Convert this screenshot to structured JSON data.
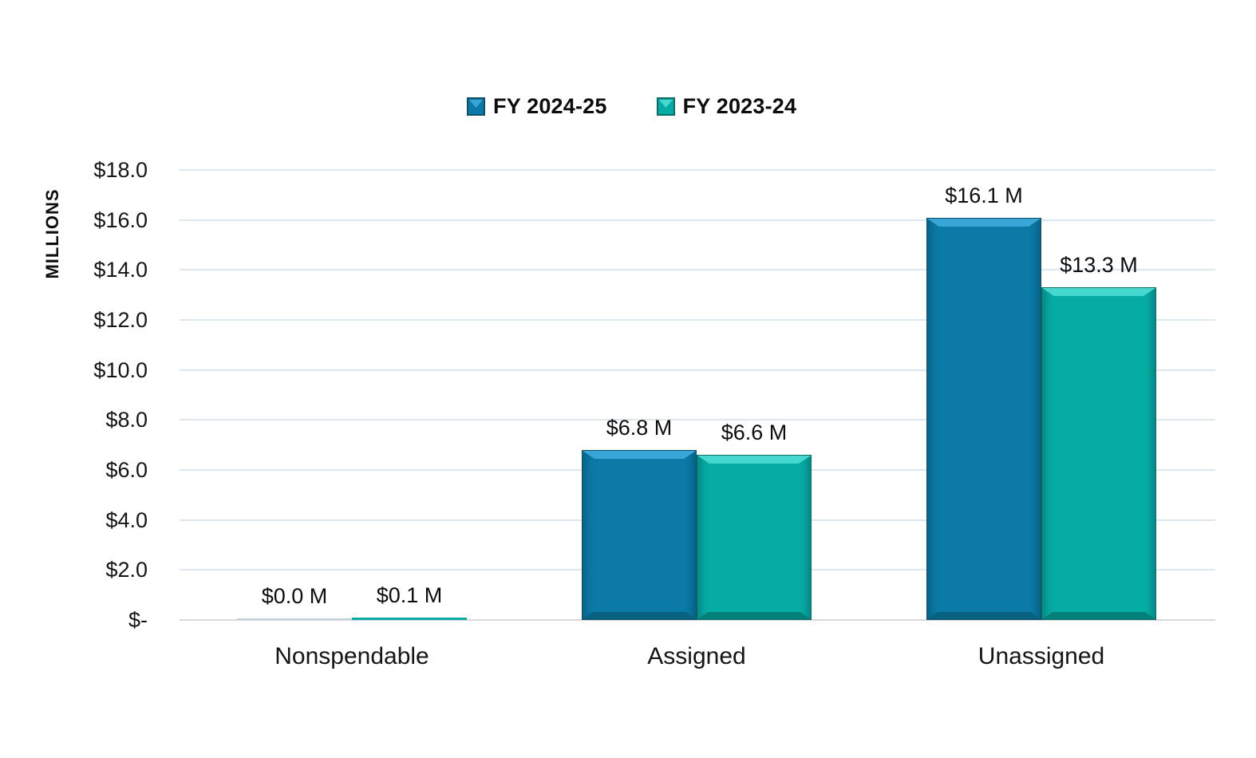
{
  "colors": {
    "series1": "#0b7aa6",
    "series1_light": "#3aa6d8",
    "series1_dark": "#07617f",
    "series1_edge": "#0d4f6b",
    "series2": "#06aca4",
    "series2_light": "#46d7ce",
    "series2_dark": "#038079",
    "series2_edge": "#0a6d68",
    "zero_bar": "#c4d0d6",
    "gridline": "#dde7ef",
    "baseline": "#d9d9d9",
    "text": "#0d0d0d"
  },
  "legend": {
    "items": [
      {
        "label": "FY 2024-25",
        "color_key": "series1"
      },
      {
        "label": "FY 2023-24",
        "color_key": "series2"
      }
    ]
  },
  "y_axis": {
    "title": "MILLIONS",
    "ticks": [
      "$18.0",
      "$16.0",
      "$14.0",
      "$12.0",
      "$10.0",
      "$8.0",
      "$6.0",
      "$4.0",
      "$2.0",
      "$-"
    ]
  },
  "chart_data": {
    "type": "bar",
    "categories": [
      "Nonspendable",
      "Assigned",
      "Unassigned"
    ],
    "series": [
      {
        "name": "FY 2024-25",
        "values": [
          0.0,
          6.8,
          16.1
        ],
        "labels": [
          "$0.0 M",
          "$6.8 M",
          "$16.1 M"
        ],
        "color": "#0b7aa6"
      },
      {
        "name": "FY 2023-24",
        "values": [
          0.1,
          6.6,
          13.3
        ],
        "labels": [
          "$0.1 M",
          "$6.6 M",
          "$13.3 M"
        ],
        "color": "#06aca4"
      }
    ],
    "title": "",
    "xlabel": "",
    "ylabel": "MILLIONS",
    "ylim": [
      0,
      18
    ],
    "ytick_step": 2,
    "grid": true,
    "legend_position": "top",
    "value_suffix": " M",
    "units": "millions of dollars"
  }
}
